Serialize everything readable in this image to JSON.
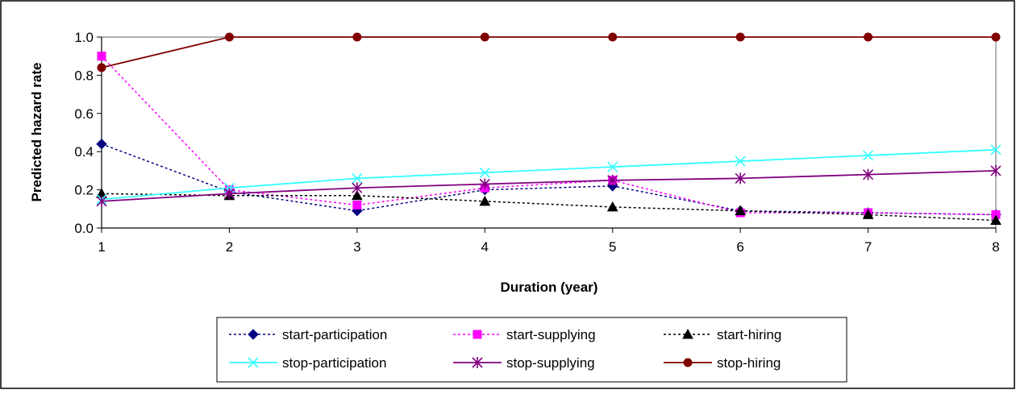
{
  "chart_data": {
    "type": "line",
    "title": "",
    "xlabel": "Duration (year)",
    "ylabel": "Predicted hazard rate",
    "x": [
      1,
      2,
      3,
      4,
      5,
      6,
      7,
      8
    ],
    "xlim": [
      1,
      8
    ],
    "ylim": [
      0,
      1
    ],
    "x_ticks": [
      "1",
      "2",
      "3",
      "4",
      "5",
      "6",
      "7",
      "8"
    ],
    "y_ticks": [
      "0.0",
      "0.2",
      "0.4",
      "0.6",
      "0.8",
      "1.0"
    ],
    "y_tick_values": [
      0,
      0.2,
      0.4,
      0.6,
      0.8,
      1.0
    ],
    "grid": false,
    "legend_position": "bottom",
    "series": [
      {
        "name": "start-participation",
        "values": [
          0.44,
          0.19,
          0.09,
          0.2,
          0.22,
          0.09,
          0.08,
          0.07
        ],
        "color": "#000080",
        "marker": "diamond",
        "dash": "dotted"
      },
      {
        "name": "start-supplying",
        "values": [
          0.9,
          0.2,
          0.12,
          0.21,
          0.25,
          0.08,
          0.08,
          0.07
        ],
        "color": "#ff00ff",
        "marker": "square",
        "dash": "dotted"
      },
      {
        "name": "start-hiring",
        "values": [
          0.18,
          0.17,
          0.17,
          0.14,
          0.11,
          0.09,
          0.07,
          0.04
        ],
        "color": "#000000",
        "marker": "triangle",
        "dash": "dotted"
      },
      {
        "name": "stop-participation",
        "values": [
          0.15,
          0.21,
          0.26,
          0.29,
          0.32,
          0.35,
          0.38,
          0.41
        ],
        "color": "#33ffff",
        "marker": "x",
        "dash": "solid"
      },
      {
        "name": "stop-supplying",
        "values": [
          0.14,
          0.18,
          0.21,
          0.23,
          0.25,
          0.26,
          0.28,
          0.3
        ],
        "color": "#800080",
        "marker": "star",
        "dash": "solid"
      },
      {
        "name": "stop-hiring",
        "values": [
          0.84,
          1.0,
          1.0,
          1.0,
          1.0,
          1.0,
          1.0,
          1.0
        ],
        "color": "#800000",
        "marker": "circle",
        "dash": "solid"
      }
    ]
  }
}
